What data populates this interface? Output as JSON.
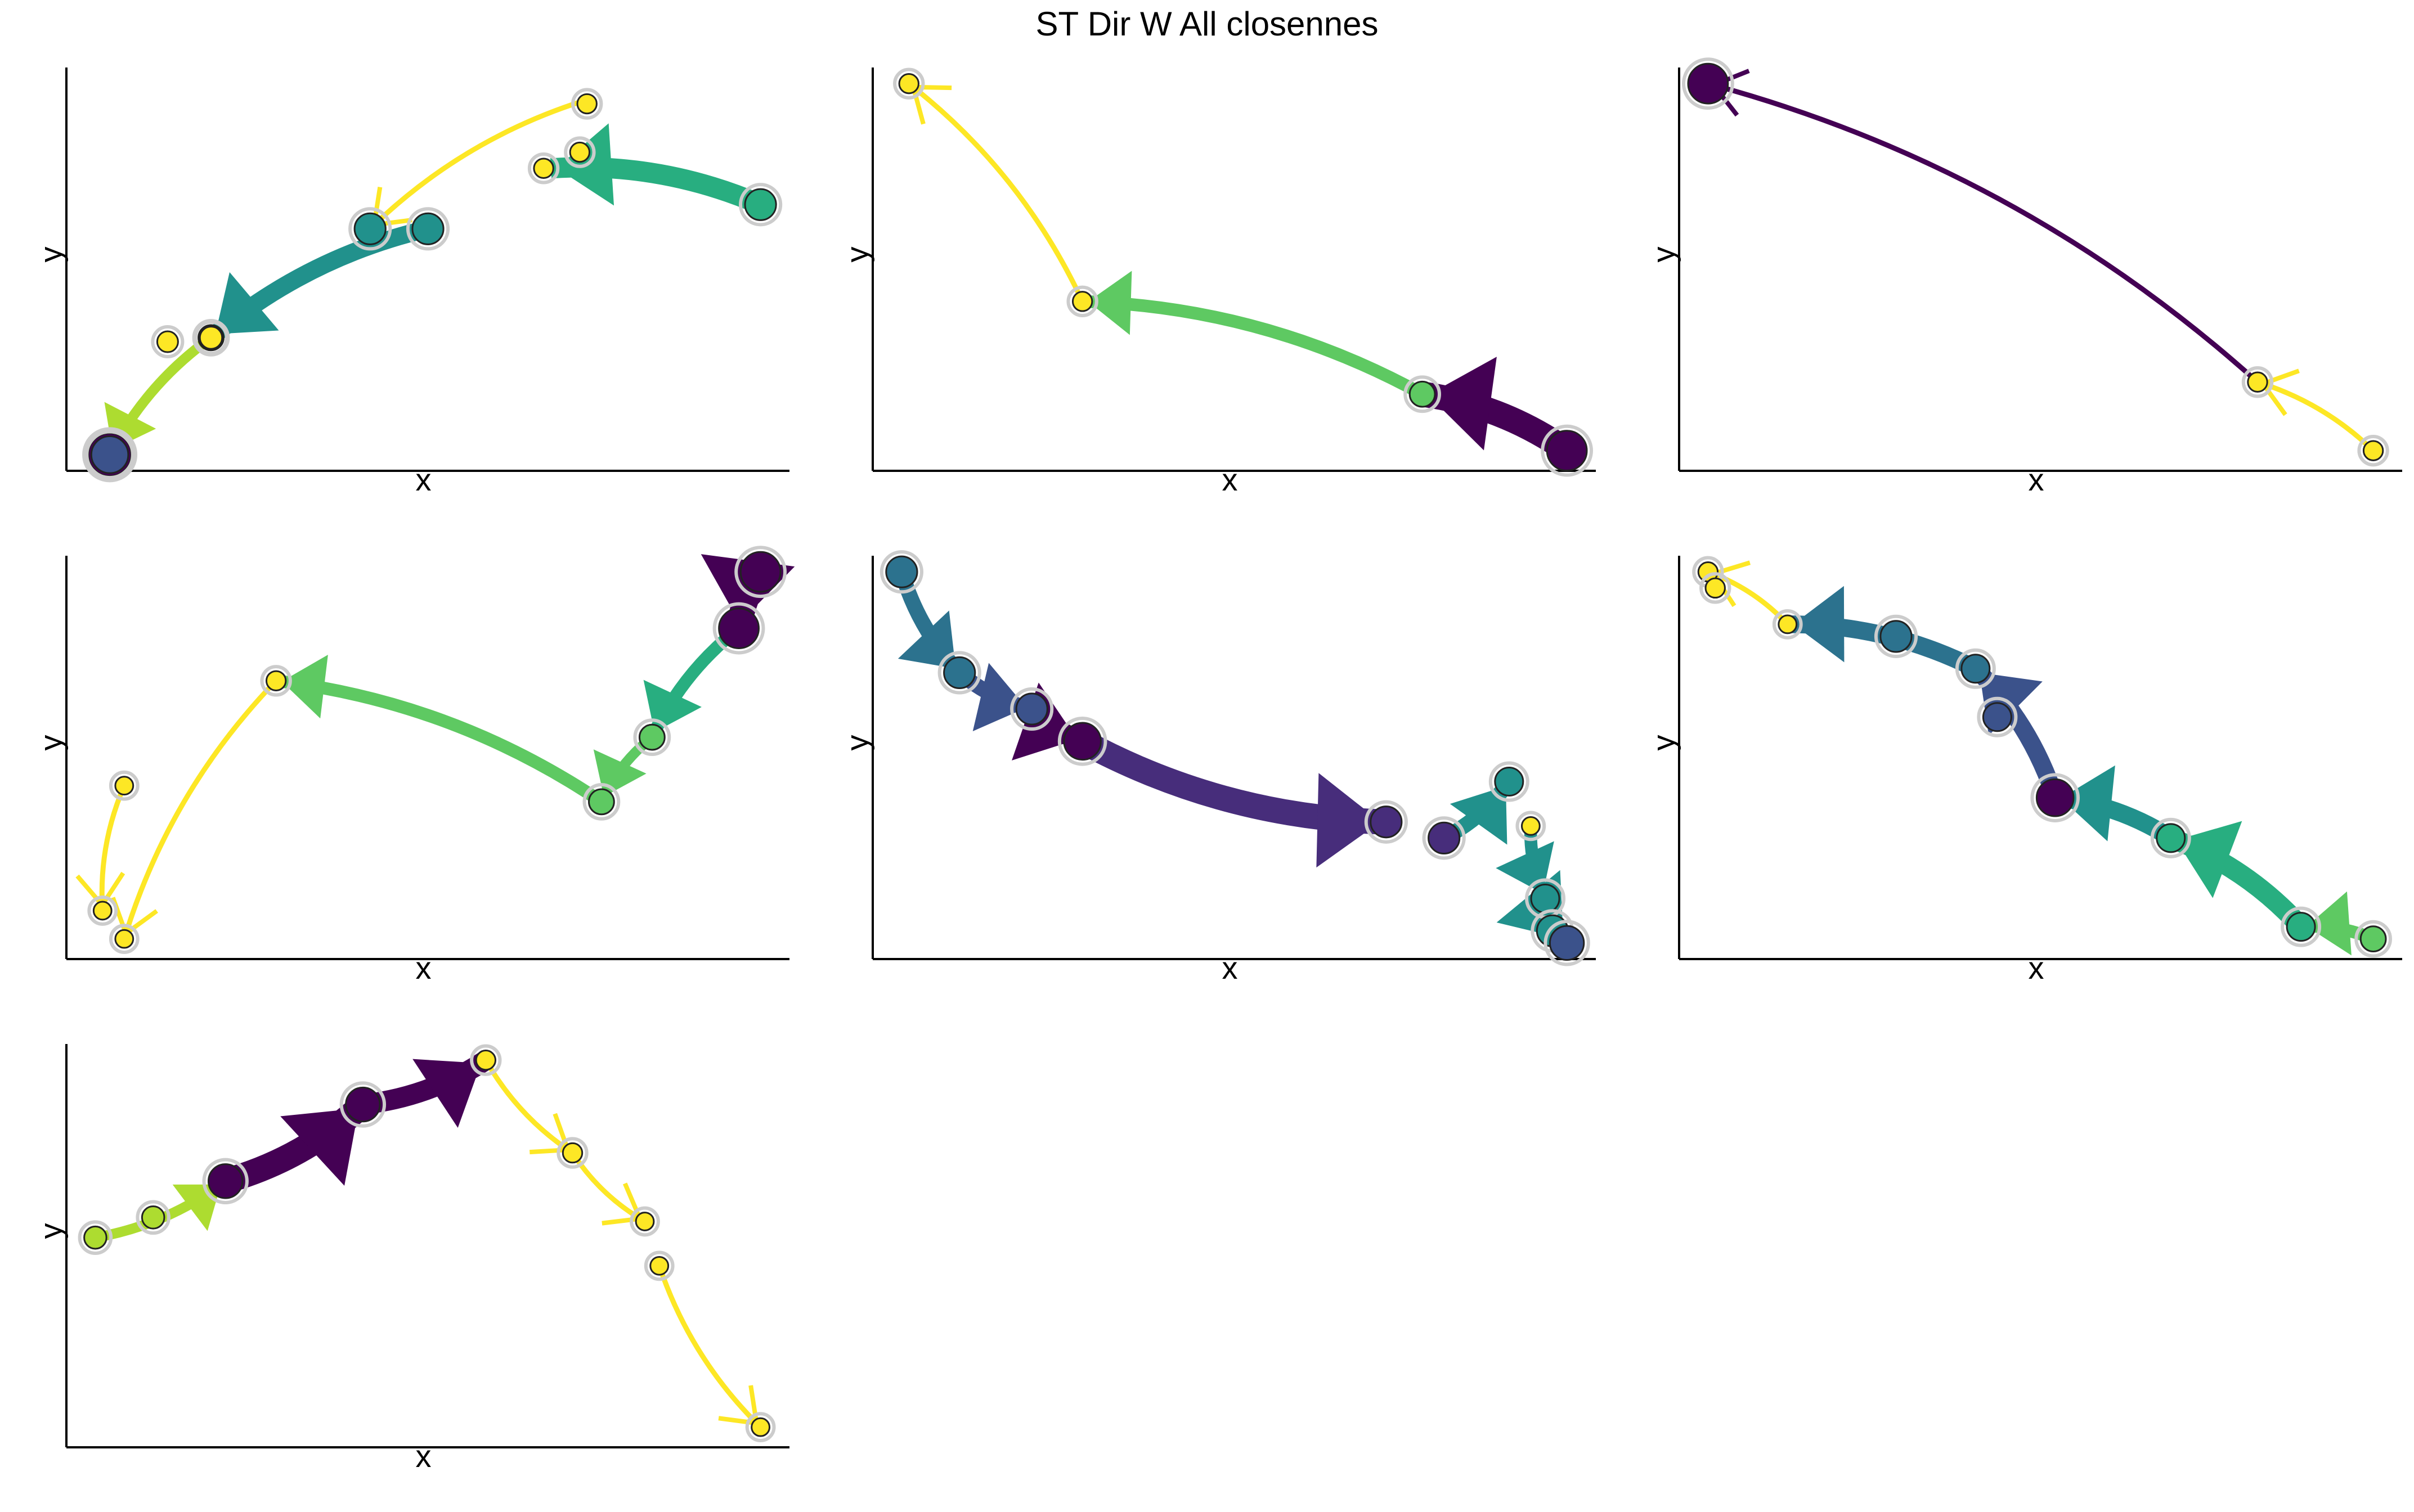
{
  "title": "ST Dir W All closennes",
  "colors": {
    "purple": "#440154",
    "indigo": "#472d7b",
    "violet": "#3b528b",
    "blue": "#2c728e",
    "teal": "#21918c",
    "green": "#28ae80",
    "lime": "#5ec962",
    "yellowgreen": "#addc30",
    "yellow": "#fde725",
    "bright": "#f4e61e"
  },
  "chart_data": [
    {
      "type": "scatter",
      "xlabel": "x",
      "ylabel": "y",
      "xlim": [
        0,
        1
      ],
      "ylim": [
        0,
        1
      ],
      "nodes": [
        {
          "x": 0.06,
          "y": 0.04,
          "size": 1.0,
          "color": "purple"
        },
        {
          "x": 0.06,
          "y": 0.04,
          "size": 0.8,
          "color": "violet"
        },
        {
          "x": 0.2,
          "y": 0.33,
          "size": 0.4,
          "color": "lime"
        },
        {
          "x": 0.2,
          "y": 0.33,
          "size": 0.3,
          "color": "yellow"
        },
        {
          "x": 0.14,
          "y": 0.32,
          "size": 0.25,
          "color": "yellow"
        },
        {
          "x": 0.42,
          "y": 0.6,
          "size": 0.6,
          "color": "teal"
        },
        {
          "x": 0.5,
          "y": 0.6,
          "size": 0.6,
          "color": "teal"
        },
        {
          "x": 0.96,
          "y": 0.66,
          "size": 0.6,
          "color": "green"
        },
        {
          "x": 0.71,
          "y": 0.79,
          "size": 0.2,
          "color": "yellow"
        },
        {
          "x": 0.72,
          "y": 0.91,
          "size": 0.2,
          "color": "yellow"
        },
        {
          "x": 0.66,
          "y": 0.75,
          "size": 0.2,
          "color": "yellow"
        }
      ],
      "edges": [
        {
          "from": [
            0.96,
            0.66
          ],
          "to": [
            0.67,
            0.75
          ],
          "w": 8,
          "color": "green"
        },
        {
          "from": [
            0.72,
            0.92
          ],
          "to": [
            0.42,
            0.6
          ],
          "w": 2,
          "color": "yellow"
        },
        {
          "from": [
            0.5,
            0.6
          ],
          "to": [
            0.2,
            0.33
          ],
          "w": 7,
          "color": "teal"
        },
        {
          "from": [
            0.2,
            0.33
          ],
          "to": [
            0.06,
            0.04
          ],
          "w": 4,
          "color": "yellowgreen"
        },
        {
          "from": [
            0.06,
            0.04
          ],
          "to": [
            0.06,
            0.04
          ],
          "w": 10,
          "color": "purple"
        }
      ]
    },
    {
      "type": "scatter",
      "xlabel": "x",
      "ylabel": "y",
      "xlim": [
        0,
        1
      ],
      "ylim": [
        0,
        1
      ],
      "nodes": [
        {
          "x": 0.96,
          "y": 0.05,
          "size": 0.9,
          "color": "purple"
        },
        {
          "x": 0.76,
          "y": 0.19,
          "size": 0.4,
          "color": "lime"
        },
        {
          "x": 0.29,
          "y": 0.42,
          "size": 0.2,
          "color": "yellow"
        },
        {
          "x": 0.05,
          "y": 0.96,
          "size": 0.2,
          "color": "yellow"
        }
      ],
      "edges": [
        {
          "from": [
            0.96,
            0.05
          ],
          "to": [
            0.76,
            0.19
          ],
          "w": 10,
          "color": "purple"
        },
        {
          "from": [
            0.76,
            0.19
          ],
          "to": [
            0.29,
            0.42
          ],
          "w": 5,
          "color": "lime"
        },
        {
          "from": [
            0.29,
            0.42
          ],
          "to": [
            0.05,
            0.96
          ],
          "w": 2,
          "color": "yellow"
        }
      ]
    },
    {
      "type": "scatter",
      "xlabel": "x",
      "ylabel": "y",
      "xlim": [
        0,
        1
      ],
      "ylim": [
        0,
        1
      ],
      "nodes": [
        {
          "x": 0.96,
          "y": 0.05,
          "size": 0.2,
          "color": "yellow"
        },
        {
          "x": 0.8,
          "y": 0.22,
          "size": 0.2,
          "color": "yellow"
        },
        {
          "x": 0.04,
          "y": 0.96,
          "size": 0.9,
          "color": "purple"
        }
      ],
      "edges": [
        {
          "from": [
            0.96,
            0.05
          ],
          "to": [
            0.8,
            0.22
          ],
          "w": 2,
          "color": "yellow"
        },
        {
          "from": [
            0.8,
            0.22
          ],
          "to": [
            0.04,
            0.96
          ],
          "w": 2,
          "color": "purple"
        }
      ]
    },
    {
      "type": "scatter",
      "xlabel": "x",
      "ylabel": "y",
      "xlim": [
        0,
        1
      ],
      "ylim": [
        0,
        1
      ],
      "nodes": [
        {
          "x": 0.96,
          "y": 0.96,
          "size": 0.9,
          "color": "purple"
        },
        {
          "x": 0.93,
          "y": 0.82,
          "size": 0.9,
          "color": "purple"
        },
        {
          "x": 0.81,
          "y": 0.55,
          "size": 0.4,
          "color": "lime"
        },
        {
          "x": 0.74,
          "y": 0.39,
          "size": 0.4,
          "color": "lime"
        },
        {
          "x": 0.29,
          "y": 0.69,
          "size": 0.2,
          "color": "yellow"
        },
        {
          "x": 0.08,
          "y": 0.43,
          "size": 0.15,
          "color": "yellow"
        },
        {
          "x": 0.05,
          "y": 0.12,
          "size": 0.15,
          "color": "yellow"
        },
        {
          "x": 0.08,
          "y": 0.05,
          "size": 0.15,
          "color": "yellow"
        }
      ],
      "edges": [
        {
          "from": [
            0.96,
            0.96
          ],
          "to": [
            0.93,
            0.82
          ],
          "w": 10,
          "color": "purple"
        },
        {
          "from": [
            0.93,
            0.82
          ],
          "to": [
            0.81,
            0.55
          ],
          "w": 5,
          "color": "green"
        },
        {
          "from": [
            0.81,
            0.55
          ],
          "to": [
            0.74,
            0.39
          ],
          "w": 4,
          "color": "lime"
        },
        {
          "from": [
            0.74,
            0.39
          ],
          "to": [
            0.29,
            0.69
          ],
          "w": 5,
          "color": "lime"
        },
        {
          "from": [
            0.29,
            0.69
          ],
          "to": [
            0.08,
            0.05
          ],
          "w": 2,
          "color": "yellow"
        },
        {
          "from": [
            0.08,
            0.43
          ],
          "to": [
            0.05,
            0.12
          ],
          "w": 2,
          "color": "yellow"
        }
      ]
    },
    {
      "type": "scatter",
      "xlabel": "x",
      "ylabel": "y",
      "xlim": [
        0,
        1
      ],
      "ylim": [
        0,
        1
      ],
      "nodes": [
        {
          "x": 0.04,
          "y": 0.96,
          "size": 0.6,
          "color": "blue"
        },
        {
          "x": 0.12,
          "y": 0.71,
          "size": 0.6,
          "color": "blue"
        },
        {
          "x": 0.22,
          "y": 0.62,
          "size": 0.6,
          "color": "violet"
        },
        {
          "x": 0.29,
          "y": 0.54,
          "size": 0.8,
          "color": "purple"
        },
        {
          "x": 0.71,
          "y": 0.34,
          "size": 0.6,
          "color": "indigo"
        },
        {
          "x": 0.79,
          "y": 0.3,
          "size": 0.6,
          "color": "indigo"
        },
        {
          "x": 0.88,
          "y": 0.44,
          "size": 0.5,
          "color": "teal"
        },
        {
          "x": 0.91,
          "y": 0.33,
          "size": 0.15,
          "color": "yellow"
        },
        {
          "x": 0.93,
          "y": 0.15,
          "size": 0.5,
          "color": "teal"
        },
        {
          "x": 0.94,
          "y": 0.07,
          "size": 0.6,
          "color": "teal"
        },
        {
          "x": 0.96,
          "y": 0.04,
          "size": 0.7,
          "color": "violet"
        }
      ],
      "edges": [
        {
          "from": [
            0.04,
            0.96
          ],
          "to": [
            0.12,
            0.71
          ],
          "w": 6,
          "color": "blue"
        },
        {
          "from": [
            0.12,
            0.71
          ],
          "to": [
            0.22,
            0.62
          ],
          "w": 6,
          "color": "violet"
        },
        {
          "from": [
            0.22,
            0.62
          ],
          "to": [
            0.29,
            0.54
          ],
          "w": 8,
          "color": "purple"
        },
        {
          "from": [
            0.29,
            0.54
          ],
          "to": [
            0.71,
            0.34
          ],
          "w": 10,
          "color": "indigo"
        },
        {
          "from": [
            0.79,
            0.3
          ],
          "to": [
            0.88,
            0.44
          ],
          "w": 6,
          "color": "teal"
        },
        {
          "from": [
            0.91,
            0.33
          ],
          "to": [
            0.93,
            0.15
          ],
          "w": 5,
          "color": "teal"
        },
        {
          "from": [
            0.93,
            0.15
          ],
          "to": [
            0.96,
            0.04
          ],
          "w": 8,
          "color": "teal"
        }
      ]
    },
    {
      "type": "scatter",
      "xlabel": "x",
      "ylabel": "y",
      "xlim": [
        0,
        1
      ],
      "ylim": [
        0,
        1
      ],
      "nodes": [
        {
          "x": 0.04,
          "y": 0.96,
          "size": 0.2,
          "color": "yellow"
        },
        {
          "x": 0.05,
          "y": 0.92,
          "size": 0.2,
          "color": "yellow"
        },
        {
          "x": 0.15,
          "y": 0.83,
          "size": 0.15,
          "color": "yellow"
        },
        {
          "x": 0.3,
          "y": 0.8,
          "size": 0.6,
          "color": "blue"
        },
        {
          "x": 0.41,
          "y": 0.72,
          "size": 0.5,
          "color": "blue"
        },
        {
          "x": 0.44,
          "y": 0.6,
          "size": 0.5,
          "color": "violet"
        },
        {
          "x": 0.52,
          "y": 0.4,
          "size": 0.8,
          "color": "purple"
        },
        {
          "x": 0.68,
          "y": 0.3,
          "size": 0.5,
          "color": "green"
        },
        {
          "x": 0.86,
          "y": 0.08,
          "size": 0.5,
          "color": "green"
        },
        {
          "x": 0.96,
          "y": 0.05,
          "size": 0.4,
          "color": "lime"
        }
      ],
      "edges": [
        {
          "from": [
            0.15,
            0.83
          ],
          "to": [
            0.04,
            0.96
          ],
          "w": 2,
          "color": "yellow"
        },
        {
          "from": [
            0.41,
            0.72
          ],
          "to": [
            0.15,
            0.83
          ],
          "w": 7,
          "color": "blue"
        },
        {
          "from": [
            0.52,
            0.4
          ],
          "to": [
            0.41,
            0.72
          ],
          "w": 7,
          "color": "violet"
        },
        {
          "from": [
            0.68,
            0.3
          ],
          "to": [
            0.52,
            0.4
          ],
          "w": 7,
          "color": "teal"
        },
        {
          "from": [
            0.86,
            0.08
          ],
          "to": [
            0.68,
            0.3
          ],
          "w": 8,
          "color": "green"
        },
        {
          "from": [
            0.96,
            0.05
          ],
          "to": [
            0.86,
            0.08
          ],
          "w": 5,
          "color": "lime"
        }
      ]
    },
    {
      "type": "scatter",
      "xlabel": "x",
      "ylabel": "y",
      "xlim": [
        0,
        1
      ],
      "ylim": [
        0,
        1
      ],
      "nodes": [
        {
          "x": 0.04,
          "y": 0.52,
          "size": 0.3,
          "color": "yellowgreen"
        },
        {
          "x": 0.12,
          "y": 0.57,
          "size": 0.3,
          "color": "yellowgreen"
        },
        {
          "x": 0.22,
          "y": 0.66,
          "size": 0.7,
          "color": "purple"
        },
        {
          "x": 0.41,
          "y": 0.85,
          "size": 0.7,
          "color": "purple"
        },
        {
          "x": 0.58,
          "y": 0.96,
          "size": 0.2,
          "color": "yellow"
        },
        {
          "x": 0.7,
          "y": 0.73,
          "size": 0.2,
          "color": "yellow"
        },
        {
          "x": 0.8,
          "y": 0.56,
          "size": 0.15,
          "color": "yellow"
        },
        {
          "x": 0.82,
          "y": 0.45,
          "size": 0.15,
          "color": "yellow"
        },
        {
          "x": 0.96,
          "y": 0.05,
          "size": 0.15,
          "color": "yellow"
        }
      ],
      "edges": [
        {
          "from": [
            0.04,
            0.52
          ],
          "to": [
            0.22,
            0.66
          ],
          "w": 4,
          "color": "yellowgreen"
        },
        {
          "from": [
            0.22,
            0.66
          ],
          "to": [
            0.41,
            0.85
          ],
          "w": 10,
          "color": "purple"
        },
        {
          "from": [
            0.41,
            0.85
          ],
          "to": [
            0.58,
            0.96
          ],
          "w": 8,
          "color": "purple"
        },
        {
          "from": [
            0.58,
            0.96
          ],
          "to": [
            0.7,
            0.73
          ],
          "w": 2,
          "color": "yellow"
        },
        {
          "from": [
            0.7,
            0.73
          ],
          "to": [
            0.8,
            0.56
          ],
          "w": 2,
          "color": "yellow"
        },
        {
          "from": [
            0.82,
            0.45
          ],
          "to": [
            0.96,
            0.05
          ],
          "w": 2,
          "color": "yellow"
        }
      ]
    }
  ]
}
